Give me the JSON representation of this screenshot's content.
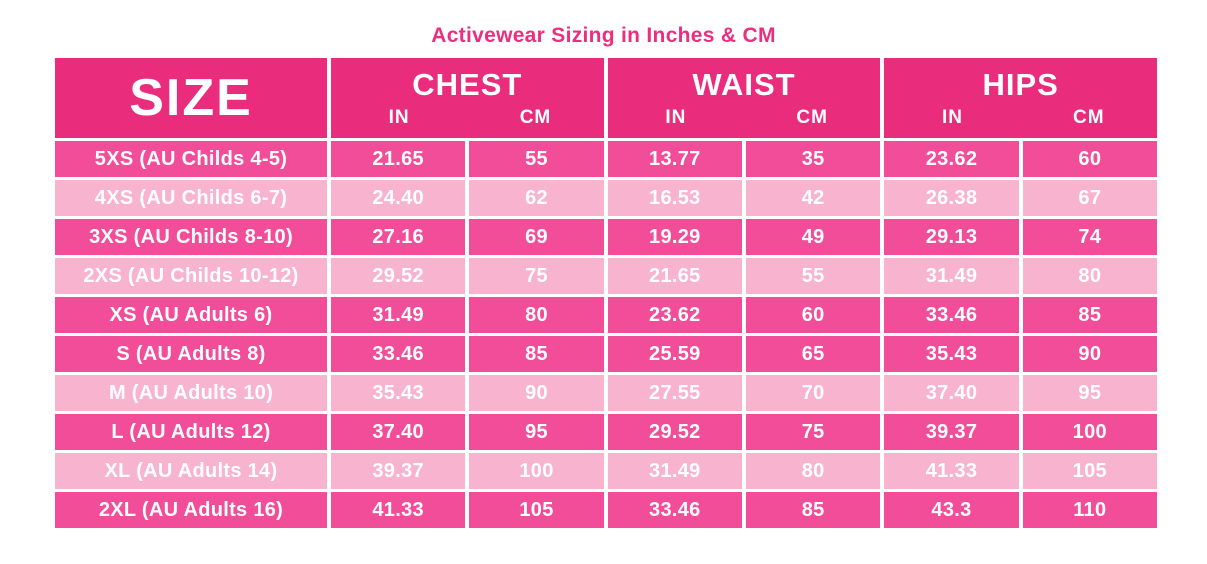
{
  "title": "Activewear Sizing in Inches & CM",
  "colors": {
    "title_text": "#ED2E7E",
    "header_bg": "#E92C7C",
    "row_dark": "#F14D99",
    "row_light": "#F8B3CF",
    "cell_text": "#FFFFFF",
    "background": "#FFFFFF"
  },
  "table": {
    "size_header": "SIZE",
    "groups": [
      {
        "label": "CHEST",
        "units": [
          "IN",
          "CM"
        ]
      },
      {
        "label": "WAIST",
        "units": [
          "IN",
          "CM"
        ]
      },
      {
        "label": "HIPS",
        "units": [
          "IN",
          "CM"
        ]
      }
    ],
    "rows": [
      {
        "label": "5XS (AU Childs 4-5)",
        "tone": "dark",
        "values": [
          "21.65",
          "55",
          "13.77",
          "35",
          "23.62",
          "60"
        ]
      },
      {
        "label": "4XS (AU Childs 6-7)",
        "tone": "light",
        "values": [
          "24.40",
          "62",
          "16.53",
          "42",
          "26.38",
          "67"
        ]
      },
      {
        "label": "3XS (AU Childs 8-10)",
        "tone": "dark",
        "values": [
          "27.16",
          "69",
          "19.29",
          "49",
          "29.13",
          "74"
        ]
      },
      {
        "label": "2XS (AU Childs 10-12)",
        "tone": "light",
        "values": [
          "29.52",
          "75",
          "21.65",
          "55",
          "31.49",
          "80"
        ]
      },
      {
        "label": "XS (AU Adults 6)",
        "tone": "dark",
        "values": [
          "31.49",
          "80",
          "23.62",
          "60",
          "33.46",
          "85"
        ]
      },
      {
        "label": "S (AU Adults 8)",
        "tone": "dark",
        "values": [
          "33.46",
          "85",
          "25.59",
          "65",
          "35.43",
          "90"
        ]
      },
      {
        "label": "M (AU Adults 10)",
        "tone": "light",
        "values": [
          "35.43",
          "90",
          "27.55",
          "70",
          "37.40",
          "95"
        ]
      },
      {
        "label": "L (AU Adults 12)",
        "tone": "dark",
        "values": [
          "37.40",
          "95",
          "29.52",
          "75",
          "39.37",
          "100"
        ]
      },
      {
        "label": "XL (AU Adults 14)",
        "tone": "light",
        "values": [
          "39.37",
          "100",
          "31.49",
          "80",
          "41.33",
          "105"
        ]
      },
      {
        "label": "2XL (AU Adults 16)",
        "tone": "dark",
        "values": [
          "41.33",
          "105",
          "33.46",
          "85",
          "43.3",
          "110"
        ]
      }
    ]
  },
  "chart_data": {
    "type": "table",
    "title": "Activewear Sizing in Inches & CM",
    "columns": [
      "SIZE",
      "CHEST IN",
      "CHEST CM",
      "WAIST IN",
      "WAIST CM",
      "HIPS IN",
      "HIPS CM"
    ],
    "rows": [
      [
        "5XS (AU Childs 4-5)",
        21.65,
        55,
        13.77,
        35,
        23.62,
        60
      ],
      [
        "4XS (AU Childs 6-7)",
        24.4,
        62,
        16.53,
        42,
        26.38,
        67
      ],
      [
        "3XS (AU Childs 8-10)",
        27.16,
        69,
        19.29,
        49,
        29.13,
        74
      ],
      [
        "2XS (AU Childs 10-12)",
        29.52,
        75,
        21.65,
        55,
        31.49,
        80
      ],
      [
        "XS (AU Adults 6)",
        31.49,
        80,
        23.62,
        60,
        33.46,
        85
      ],
      [
        "S (AU Adults 8)",
        33.46,
        85,
        25.59,
        65,
        35.43,
        90
      ],
      [
        "M (AU Adults 10)",
        35.43,
        90,
        27.55,
        70,
        37.4,
        95
      ],
      [
        "L (AU Adults 12)",
        37.4,
        95,
        29.52,
        75,
        39.37,
        100
      ],
      [
        "XL (AU Adults 14)",
        39.37,
        100,
        31.49,
        80,
        41.33,
        105
      ],
      [
        "2XL (AU Adults 16)",
        41.33,
        105,
        33.46,
        85,
        43.3,
        110
      ]
    ]
  }
}
